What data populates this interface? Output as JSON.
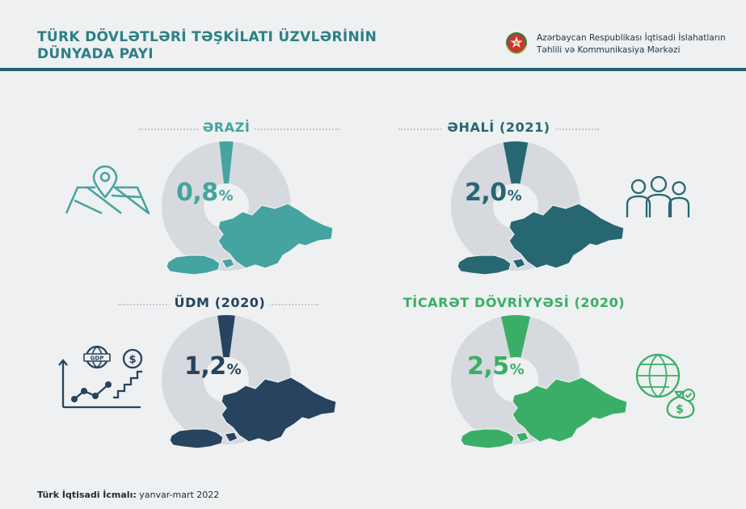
{
  "header": {
    "title_line1": "TÜRK DÖVLƏTLƏRİ TƏŞKİLATI ÜZVLƏRİNİN",
    "title_line2": "DÜNYADA PAYI",
    "org_line1": "Azərbaycan Respublikası İqtisadi İslahatların",
    "org_line2": "Təhlili və Kommunikasiya Mərkəzi"
  },
  "percent_sign": "%",
  "chart_data": [
    {
      "type": "pie",
      "title": "ƏRAZİ",
      "share_percent": 0.8,
      "value_label": "0,8",
      "color": "#45a3a0",
      "icon": "map-pin-icon"
    },
    {
      "type": "pie",
      "title": "ƏHALİ (2021)",
      "share_percent": 2.0,
      "value_label": "2,0",
      "color": "#266771",
      "icon": "people-icon"
    },
    {
      "type": "pie",
      "title": "ÜDM (2020)",
      "share_percent": 1.2,
      "value_label": "1,2",
      "color": "#27435e",
      "icon": "gdp-growth-icon"
    },
    {
      "type": "pie",
      "title": "TİCARƏT DÖVRİYYƏSİ (2020)",
      "share_percent": 2.5,
      "value_label": "2,5",
      "color": "#3aae66",
      "icon": "globe-money-icon"
    }
  ],
  "donut_track_color": "#d6d9de",
  "footer": {
    "bold": "Türk İqtisadi İcmalı:",
    "text": " yanvar-mart 2022"
  }
}
